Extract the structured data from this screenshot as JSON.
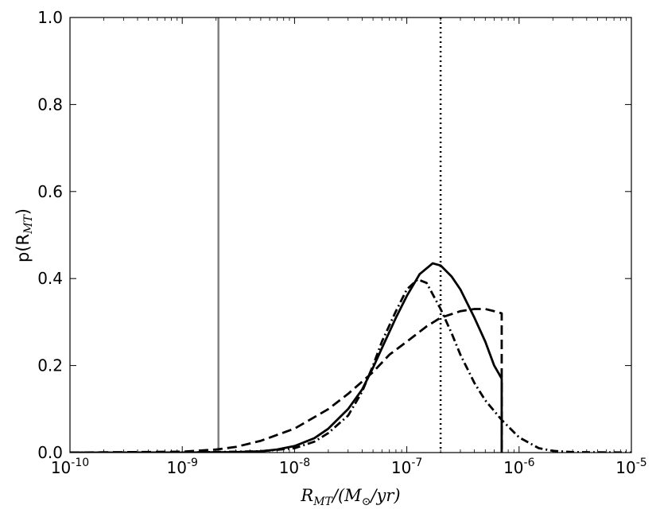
{
  "chart_data": {
    "type": "line",
    "title": "",
    "xlabel": {
      "main": "R",
      "sub": "MT",
      "rest": "/(M",
      "sun": "⊙",
      "tail": "/yr)"
    },
    "ylabel": {
      "main": "p(R",
      "sub": "MT",
      "tail": ")"
    },
    "xscale": "log",
    "xlim": [
      1e-10,
      1e-05
    ],
    "ylim": [
      0.0,
      1.0
    ],
    "x_ticks": [
      {
        "base": "10",
        "exp": "-10",
        "value": 1e-10
      },
      {
        "base": "10",
        "exp": "-9",
        "value": 1e-09
      },
      {
        "base": "10",
        "exp": "-8",
        "value": 1e-08
      },
      {
        "base": "10",
        "exp": "-7",
        "value": 1e-07
      },
      {
        "base": "10",
        "exp": "-6",
        "value": 1e-06
      },
      {
        "base": "10",
        "exp": "-5",
        "value": 1e-05
      }
    ],
    "y_ticks": [
      "0.0",
      "0.2",
      "0.4",
      "0.6",
      "0.8",
      "1.0"
    ],
    "grid": false,
    "legend": "none",
    "vertical_lines": [
      {
        "x": 2.1e-09,
        "style": "solid",
        "color": "#808080"
      },
      {
        "x": 2e-07,
        "style": "dotted",
        "color": "#000000"
      }
    ],
    "series": [
      {
        "style": "solid",
        "color": "#000000",
        "x": [
          1e-10,
          1e-09,
          3e-09,
          5e-09,
          7e-09,
          1e-08,
          1.5e-08,
          2e-08,
          3e-08,
          4e-08,
          5e-08,
          6e-08,
          8e-08,
          1e-07,
          1.3e-07,
          1.7e-07,
          2e-07,
          2.5e-07,
          3e-07,
          4e-07,
          5e-07,
          6e-07,
          7e-07,
          7e-07
        ],
        "y": [
          0.0,
          0.0,
          0.001,
          0.003,
          0.007,
          0.015,
          0.033,
          0.055,
          0.1,
          0.145,
          0.195,
          0.24,
          0.31,
          0.36,
          0.41,
          0.435,
          0.43,
          0.405,
          0.375,
          0.31,
          0.255,
          0.2,
          0.17,
          0.0
        ]
      },
      {
        "style": "dashed",
        "color": "#000000",
        "x": [
          1e-10,
          1e-09,
          2e-09,
          3e-09,
          5e-09,
          1e-08,
          2e-08,
          3e-08,
          5e-08,
          7e-08,
          1e-07,
          1.5e-07,
          2e-07,
          3e-07,
          4e-07,
          5e-07,
          6e-07,
          7e-07,
          7e-07
        ],
        "y": [
          0.0,
          0.002,
          0.007,
          0.013,
          0.027,
          0.055,
          0.1,
          0.135,
          0.185,
          0.225,
          0.255,
          0.29,
          0.31,
          0.325,
          0.33,
          0.33,
          0.325,
          0.32,
          0.0
        ]
      },
      {
        "style": "dashdot",
        "color": "#000000",
        "x": [
          1e-10,
          1e-09,
          5e-09,
          1e-08,
          1.5e-08,
          2e-08,
          3e-08,
          4e-08,
          5e-08,
          6e-08,
          8e-08,
          1e-07,
          1.25e-07,
          1.5e-07,
          2e-07,
          2.5e-07,
          3e-07,
          4e-07,
          5e-07,
          7e-07,
          1e-06,
          1.5e-06,
          2e-06,
          3e-06,
          1e-05
        ],
        "y": [
          0.0,
          0.0,
          0.003,
          0.01,
          0.025,
          0.045,
          0.085,
          0.14,
          0.2,
          0.255,
          0.325,
          0.375,
          0.398,
          0.39,
          0.33,
          0.275,
          0.225,
          0.16,
          0.12,
          0.075,
          0.035,
          0.01,
          0.004,
          0.001,
          0.0
        ]
      }
    ]
  }
}
